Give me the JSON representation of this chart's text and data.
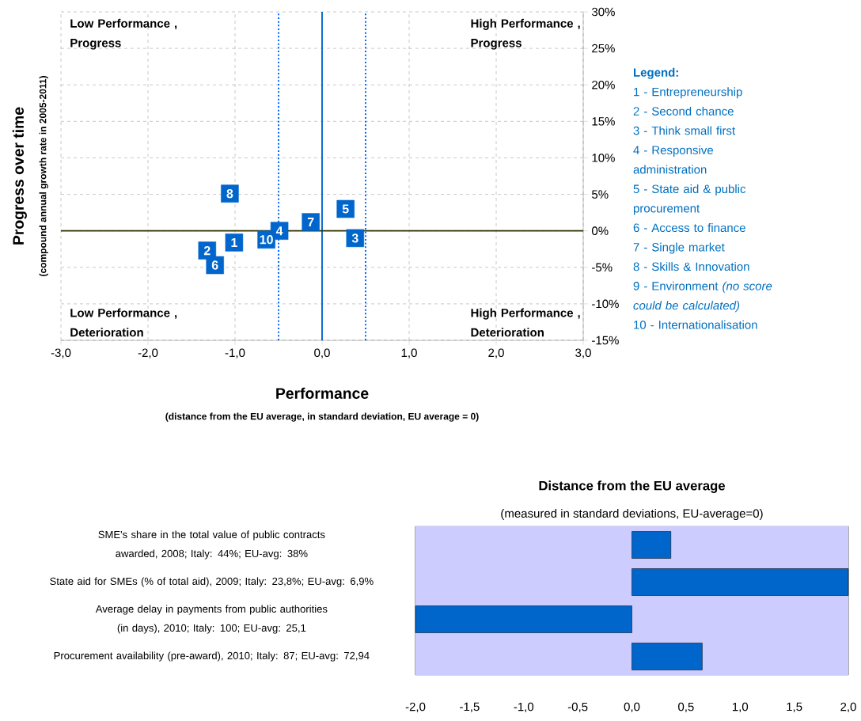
{
  "chart_data": [
    {
      "type": "scatter",
      "xlabel": "Performance",
      "ylabel": "Progress over time",
      "series": [
        {
          "color": "#0066cc",
          "x": [
            -1.01,
            -1.32,
            0.38,
            -0.49,
            0.27,
            -1.23,
            -0.13,
            -1.06,
            -0.64
          ],
          "values": [
            -1.6,
            -2.7,
            -1.0,
            0.0,
            3.0,
            -4.7,
            1.2,
            5.1,
            -1.2
          ]
        }
      ],
      "marker": "square",
      "grid": true,
      "xlim": [
        -3,
        3
      ],
      "ylim": [
        -15,
        30
      ],
      "xticks": [
        {
          "value": -3,
          "label": "-3,0"
        },
        {
          "value": -2,
          "label": "-2,0"
        },
        {
          "value": -1,
          "label": "-1,0"
        },
        {
          "value": 0,
          "label": "0,0"
        },
        {
          "value": 1,
          "label": "1,0"
        },
        {
          "value": 2,
          "label": "2,0"
        },
        {
          "value": 3,
          "label": "3,0"
        }
      ],
      "yticks": [
        {
          "value": -15,
          "label": "-15%"
        },
        {
          "value": -10,
          "label": "-10%"
        },
        {
          "value": -5,
          "label": "-5%"
        },
        {
          "value": 0,
          "label": "0%"
        },
        {
          "value": 5,
          "label": "5%"
        },
        {
          "value": 10,
          "label": "10%"
        },
        {
          "value": 15,
          "label": "15%"
        },
        {
          "value": 20,
          "label": "20%"
        },
        {
          "value": 25,
          "label": "25%"
        },
        {
          "value": 30,
          "label": "30%"
        }
      ],
      "ref_lines": [
        {
          "axis": "x",
          "value": 0,
          "color": "#0066cc",
          "line_style": "solid"
        },
        {
          "axis": "x",
          "value": -0.5,
          "color": "#0066ff",
          "line_style": "dotted"
        },
        {
          "axis": "x",
          "value": 0.5,
          "color": "#0066ff",
          "line_style": "dotted"
        },
        {
          "axis": "y",
          "value": 0,
          "color": "#333300",
          "line_style": "solid"
        }
      ],
      "annotations": [
        "Low Performance , Progress",
        "High Performance , Progress",
        "Low Performance , Deterioration",
        "High Performance , Deterioration",
        "(compound annual growth rate in 2005-2011)",
        "(distance from the EU average,  in standard deviation, EU average = 0)",
        "**Legend:**",
        "1 - Entrepreneurship",
        "2 - Second chance",
        "3 - Think small first",
        "4 - Responsive administration",
        "5 - State aid & public procurement",
        "6 -  Access to finance",
        "7 - Single market",
        "8 - Skills & Innovation",
        "9 - Environment *(no score could be calculated)*",
        "10 - Internationalisation",
        {
          "text": "1",
          "x": -1.01,
          "y": -1.6
        },
        {
          "text": "2",
          "x": -1.32,
          "y": -2.7
        },
        {
          "text": "3",
          "x": 0.38,
          "y": -1.0
        },
        {
          "text": "4",
          "x": -0.49,
          "y": 0.0
        },
        {
          "text": "5",
          "x": 0.27,
          "y": 3.0
        },
        {
          "text": "6",
          "x": -1.23,
          "y": -4.7
        },
        {
          "text": "7",
          "x": -0.13,
          "y": 1.2
        },
        {
          "text": "8",
          "x": -1.06,
          "y": 5.1
        },
        {
          "text": "10",
          "x": -0.64,
          "y": -1.2
        }
      ]
    },
    {
      "type": "bar",
      "orientation": "horizontal",
      "title": "Distance from the EU average",
      "subtitle": "(measured in standard deviations, EU-average=0)",
      "categories": [
        "SME's share in the total value of public contracts awarded, 2008; Italy: 44%; EU-avg: 38%",
        "State aid for SMEs (% of total aid), 2009; Italy: 23,8%; EU-avg: 6,9%",
        "Average delay in payments from public authorities (in days), 2010; Italy: 100; EU-avg: 25,1",
        "Procurement availability (pre-award), 2010; Italy: 87; EU-avg: 72,94"
      ],
      "values": [
        0.36,
        2.0,
        -2.0,
        0.65
      ],
      "color": "#0066cc",
      "grid": "x",
      "xlim": [
        -2,
        2
      ],
      "xticks": [
        {
          "value": -2,
          "label": "-2,0"
        },
        {
          "value": -1.5,
          "label": "-1,5"
        },
        {
          "value": -1,
          "label": "-1,0"
        },
        {
          "value": -0.5,
          "label": "-0,5"
        },
        {
          "value": 0,
          "label": "0,0"
        },
        {
          "value": 0.5,
          "label": "0,5"
        },
        {
          "value": 1,
          "label": "1,0"
        },
        {
          "value": 1.5,
          "label": "1,5"
        },
        {
          "value": 2,
          "label": "2,0"
        }
      ]
    }
  ]
}
